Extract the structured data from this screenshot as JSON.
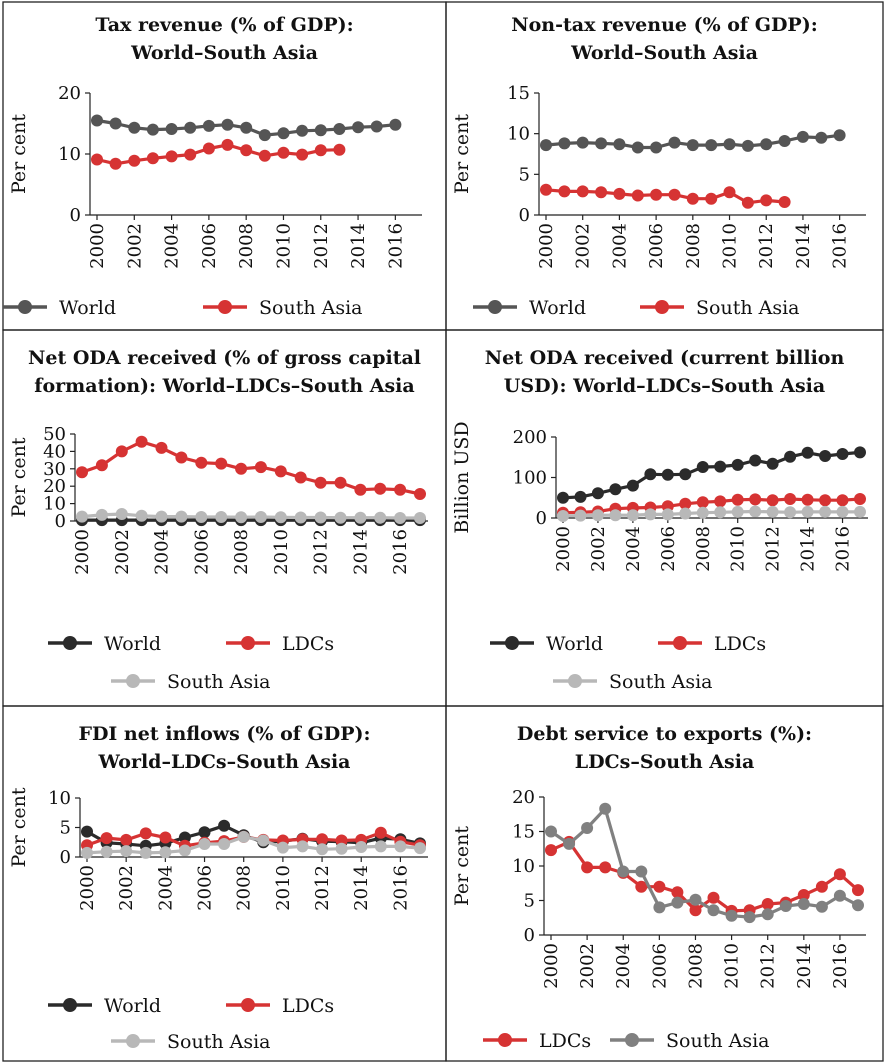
{
  "colors": {
    "world_dark_gray": "#555555",
    "world_black": "#2b2b2b",
    "ldc_red": "#d63333",
    "south_asia_light": "#b8b8b8",
    "south_asia_gray": "#808080"
  },
  "chart_data": [
    {
      "type": "line",
      "title": [
        "Tax revenue (% of GDP):",
        "World–South Asia"
      ],
      "ylabel": "Per cent",
      "ylim": [
        0,
        20
      ],
      "yticks": [
        "0",
        "10",
        "20"
      ],
      "xlim": [
        2000,
        2017
      ],
      "xticks": [
        "2000",
        "2002",
        "2004",
        "2006",
        "2008",
        "2010",
        "2012",
        "2014",
        "2016"
      ],
      "legend": "bottom",
      "series": [
        {
          "name": "World",
          "color": "#555555",
          "x": [
            2000,
            2001,
            2002,
            2003,
            2004,
            2005,
            2006,
            2007,
            2008,
            2009,
            2010,
            2011,
            2012,
            2013,
            2014,
            2015,
            2016
          ],
          "values": [
            15.5,
            15.0,
            14.3,
            14.0,
            14.1,
            14.3,
            14.6,
            14.8,
            14.3,
            13.1,
            13.4,
            13.8,
            13.9,
            14.1,
            14.4,
            14.5,
            14.8
          ]
        },
        {
          "name": "South Asia",
          "color": "#d63333",
          "x": [
            2000,
            2001,
            2002,
            2003,
            2004,
            2005,
            2006,
            2007,
            2008,
            2009,
            2010,
            2011,
            2012,
            2013
          ],
          "values": [
            9.1,
            8.4,
            8.9,
            9.3,
            9.6,
            9.9,
            10.9,
            11.5,
            10.6,
            9.7,
            10.2,
            9.9,
            10.6,
            10.7
          ]
        }
      ]
    },
    {
      "type": "line",
      "title": [
        "Non-tax revenue (% of GDP):",
        "World–South Asia"
      ],
      "ylabel": "Per cent",
      "ylim": [
        0,
        15
      ],
      "yticks": [
        "0",
        "5",
        "10",
        "15"
      ],
      "xlim": [
        2000,
        2017
      ],
      "xticks": [
        "2000",
        "2002",
        "2004",
        "2006",
        "2008",
        "2010",
        "2012",
        "2014",
        "2016"
      ],
      "legend": "bottom",
      "series": [
        {
          "name": "World",
          "color": "#555555",
          "x": [
            2000,
            2001,
            2002,
            2003,
            2004,
            2005,
            2006,
            2007,
            2008,
            2009,
            2010,
            2011,
            2012,
            2013,
            2014,
            2015,
            2016
          ],
          "values": [
            8.6,
            8.8,
            8.9,
            8.8,
            8.7,
            8.3,
            8.3,
            8.9,
            8.6,
            8.6,
            8.7,
            8.5,
            8.7,
            9.1,
            9.6,
            9.5,
            9.8
          ]
        },
        {
          "name": "South Asia",
          "color": "#d63333",
          "x": [
            2000,
            2001,
            2002,
            2003,
            2004,
            2005,
            2006,
            2007,
            2008,
            2009,
            2010,
            2011,
            2012,
            2013
          ],
          "values": [
            3.1,
            2.9,
            2.9,
            2.8,
            2.6,
            2.4,
            2.5,
            2.5,
            2.0,
            2.0,
            2.8,
            1.5,
            1.8,
            1.6
          ]
        }
      ]
    },
    {
      "type": "line",
      "title": [
        "Net ODA received (% of gross capital",
        "formation): World–LDCs–South Asia"
      ],
      "ylabel": "Per cent",
      "ylim": [
        0,
        50
      ],
      "yticks": [
        "0",
        "10",
        "20",
        "30",
        "40",
        "50"
      ],
      "xlim": [
        2000,
        2017
      ],
      "xticks": [
        "2000",
        "2002",
        "2004",
        "2006",
        "2008",
        "2010",
        "2012",
        "2014",
        "2016"
      ],
      "legend": "bottom",
      "series": [
        {
          "name": "World",
          "color": "#2b2b2b",
          "x": [
            2000,
            2001,
            2002,
            2003,
            2004,
            2005,
            2006,
            2007,
            2008,
            2009,
            2010,
            2011,
            2012,
            2013,
            2014,
            2015,
            2016,
            2017
          ],
          "values": [
            0.5,
            0.5,
            0.5,
            0.5,
            0.5,
            0.5,
            0.5,
            0.5,
            0.5,
            0.5,
            0.5,
            0.5,
            0.5,
            0.5,
            0.5,
            0.5,
            0.5,
            0.5
          ]
        },
        {
          "name": "LDCs",
          "color": "#d63333",
          "x": [
            2000,
            2001,
            2002,
            2003,
            2004,
            2005,
            2006,
            2007,
            2008,
            2009,
            2010,
            2011,
            2012,
            2013,
            2014,
            2015,
            2016,
            2017
          ],
          "values": [
            28,
            32,
            40,
            45.5,
            42,
            36.5,
            33.5,
            33,
            30,
            31,
            28.5,
            25,
            22,
            22,
            18,
            18.5,
            18,
            15.5
          ]
        },
        {
          "name": "South Asia",
          "color": "#b8b8b8",
          "x": [
            2000,
            2001,
            2002,
            2003,
            2004,
            2005,
            2006,
            2007,
            2008,
            2009,
            2010,
            2011,
            2012,
            2013,
            2014,
            2015,
            2016,
            2017
          ],
          "values": [
            2.5,
            3.5,
            4,
            3,
            2.5,
            2.5,
            2.3,
            2.3,
            2.2,
            2.3,
            2.1,
            2.0,
            2.0,
            1.9,
            1.9,
            1.9,
            1.7,
            1.7
          ]
        }
      ]
    },
    {
      "type": "line",
      "title": [
        "Net ODA received (current billion",
        "USD): World–LDCs–South Asia"
      ],
      "ylabel": "Billion USD",
      "ylim": [
        0,
        200
      ],
      "yticks": [
        "0",
        "100",
        "200"
      ],
      "xlim": [
        2000,
        2017
      ],
      "xticks": [
        "2000",
        "2002",
        "2004",
        "2006",
        "2008",
        "2010",
        "2012",
        "2014",
        "2016"
      ],
      "legend": "bottom",
      "series": [
        {
          "name": "World",
          "color": "#2b2b2b",
          "x": [
            2000,
            2001,
            2002,
            2003,
            2004,
            2005,
            2006,
            2007,
            2008,
            2009,
            2010,
            2011,
            2012,
            2013,
            2014,
            2015,
            2016,
            2017
          ],
          "values": [
            50,
            52,
            61,
            71,
            80,
            108,
            107,
            108,
            126,
            127,
            131,
            142,
            134,
            151,
            161,
            153,
            158,
            162
          ]
        },
        {
          "name": "LDCs",
          "color": "#d63333",
          "x": [
            2000,
            2001,
            2002,
            2003,
            2004,
            2005,
            2006,
            2007,
            2008,
            2009,
            2010,
            2011,
            2012,
            2013,
            2014,
            2015,
            2016,
            2017
          ],
          "values": [
            13,
            14,
            16,
            23,
            25,
            26,
            29,
            35,
            39,
            41,
            45,
            46,
            44,
            47,
            45,
            44,
            44,
            47
          ]
        },
        {
          "name": "South Asia",
          "color": "#b8b8b8",
          "x": [
            2000,
            2001,
            2002,
            2003,
            2004,
            2005,
            2006,
            2007,
            2008,
            2009,
            2010,
            2011,
            2012,
            2013,
            2014,
            2015,
            2016,
            2017
          ],
          "values": [
            5,
            6,
            7,
            7,
            7,
            9,
            9,
            11,
            13,
            14,
            15,
            16,
            15,
            14,
            15,
            15,
            15,
            15
          ]
        }
      ]
    },
    {
      "type": "line",
      "title": [
        "FDI net inflows (% of GDP):",
        "World–LDCs–South Asia"
      ],
      "ylabel": "Per cent",
      "ylim": [
        0,
        10
      ],
      "yticks": [
        "0",
        "5",
        "10"
      ],
      "xlim": [
        2000,
        2017
      ],
      "xticks": [
        "2000",
        "2002",
        "2004",
        "2006",
        "2008",
        "2010",
        "2012",
        "2014",
        "2016"
      ],
      "legend": "bottom",
      "series": [
        {
          "name": "World",
          "color": "#2b2b2b",
          "x": [
            2000,
            2001,
            2002,
            2003,
            2004,
            2005,
            2006,
            2007,
            2008,
            2009,
            2010,
            2011,
            2012,
            2013,
            2014,
            2015,
            2016,
            2017
          ],
          "values": [
            4.3,
            2.4,
            2.2,
            1.9,
            2.3,
            3.3,
            4.2,
            5.3,
            3.7,
            2.5,
            2.7,
            3.1,
            2.7,
            2.6,
            2.4,
            3.2,
            3.0,
            2.3
          ]
        },
        {
          "name": "LDCs",
          "color": "#d63333",
          "x": [
            2000,
            2001,
            2002,
            2003,
            2004,
            2005,
            2006,
            2007,
            2008,
            2009,
            2010,
            2011,
            2012,
            2013,
            2014,
            2015,
            2016,
            2017
          ],
          "values": [
            2.0,
            3.2,
            2.9,
            4.0,
            3.3,
            1.9,
            2.4,
            2.7,
            3.4,
            2.9,
            2.8,
            3.0,
            3.0,
            2.8,
            2.9,
            4.1,
            2.6,
            2.0
          ]
        },
        {
          "name": "South Asia",
          "color": "#b8b8b8",
          "x": [
            2000,
            2001,
            2002,
            2003,
            2004,
            2005,
            2006,
            2007,
            2008,
            2009,
            2010,
            2011,
            2012,
            2013,
            2014,
            2015,
            2016,
            2017
          ],
          "values": [
            0.7,
            0.9,
            1.0,
            0.7,
            0.8,
            1.1,
            2.2,
            2.2,
            3.4,
            2.8,
            1.6,
            1.8,
            1.3,
            1.4,
            1.7,
            1.8,
            1.8,
            1.5
          ]
        }
      ]
    },
    {
      "type": "line",
      "title": [
        "Debt service to exports (%):",
        "LDCs–South Asia"
      ],
      "ylabel": "Per cent",
      "ylim": [
        0,
        20
      ],
      "yticks": [
        "0",
        "5",
        "10",
        "15",
        "20"
      ],
      "xlim": [
        2000,
        2017
      ],
      "xticks": [
        "2000",
        "2002",
        "2004",
        "2006",
        "2008",
        "2010",
        "2012",
        "2014",
        "2016"
      ],
      "legend": "bottom",
      "series": [
        {
          "name": "LDCs",
          "color": "#d63333",
          "x": [
            2000,
            2001,
            2002,
            2003,
            2004,
            2005,
            2006,
            2007,
            2008,
            2009,
            2010,
            2011,
            2012,
            2013,
            2014,
            2015,
            2016,
            2017
          ],
          "values": [
            12.3,
            13.5,
            9.8,
            9.8,
            9.0,
            7.0,
            7.0,
            6.2,
            3.6,
            5.4,
            3.5,
            3.6,
            4.5,
            4.7,
            5.8,
            7.0,
            8.8,
            6.5
          ]
        },
        {
          "name": "South Asia",
          "color": "#808080",
          "x": [
            2000,
            2001,
            2002,
            2003,
            2004,
            2005,
            2006,
            2007,
            2008,
            2009,
            2010,
            2011,
            2012,
            2013,
            2014,
            2015,
            2016,
            2017
          ],
          "values": [
            15.0,
            13.2,
            15.5,
            18.3,
            9.2,
            9.2,
            4.0,
            4.7,
            5.1,
            3.6,
            2.8,
            2.6,
            3.0,
            4.2,
            4.5,
            4.1,
            5.7,
            4.3
          ]
        }
      ]
    }
  ]
}
